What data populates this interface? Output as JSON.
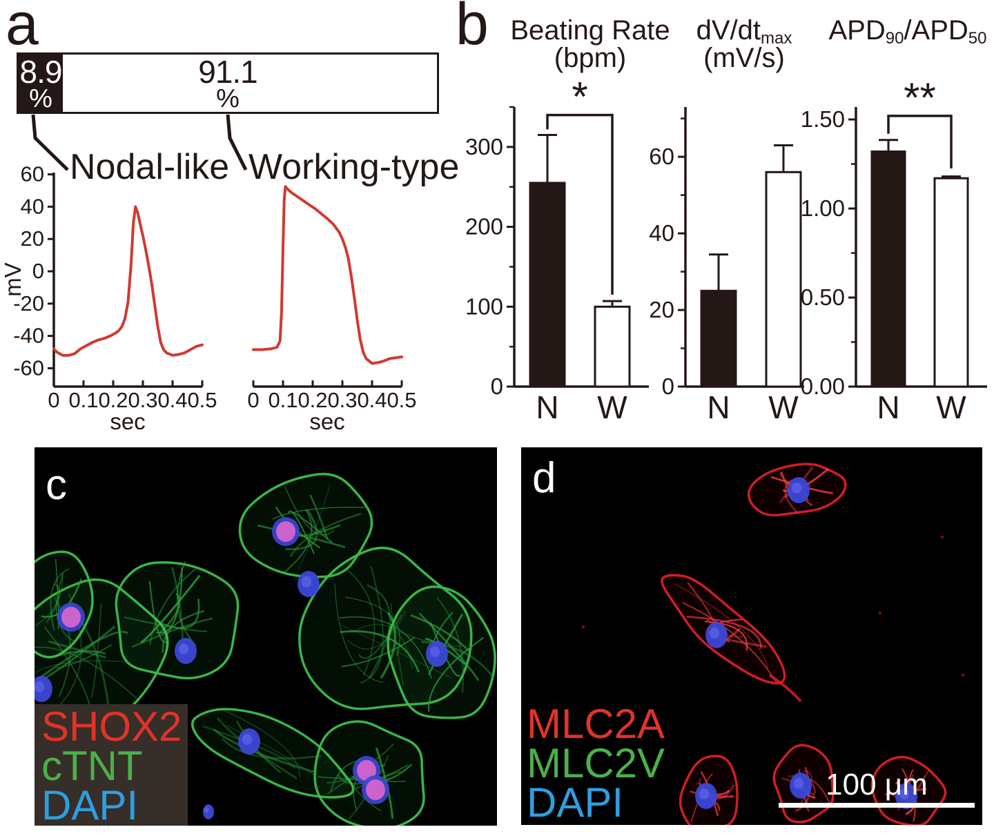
{
  "colors": {
    "ink": "#231815",
    "trace_red": "#cf3a31",
    "micro_green": "#3fbf4b",
    "micro_red": "#dd1f28",
    "nucleus_blue": "#3c47d6",
    "nucleus_pink": "#d565cc",
    "legend_red": "#e23328",
    "legend_green": "#4cb04a",
    "legend_blue": "#2d9fe0",
    "legend_bg": "#362e29",
    "white": "#ffffff"
  },
  "panels": {
    "a": {
      "label": "a",
      "distribution": {
        "segments": [
          {
            "name": "Nodal-like",
            "value": "8.9",
            "unit": "%"
          },
          {
            "name": "Working-type",
            "value": "91.1",
            "unit": "%"
          }
        ]
      }
    },
    "b": {
      "label": "b",
      "charts": [
        {
          "title_segments": [
            {
              "t": "Beating Rate"
            }
          ],
          "subtitle": "(bpm)"
        },
        {
          "title_segments": [
            {
              "t": "dV/dt"
            },
            {
              "t": "max",
              "sub": true
            }
          ],
          "subtitle": "(mV/s)"
        },
        {
          "title_segments": [
            {
              "t": "APD"
            },
            {
              "t": "90",
              "sub": true
            },
            {
              "t": "/APD"
            },
            {
              "t": "50",
              "sub": true
            }
          ],
          "subtitle": ""
        }
      ]
    },
    "c": {
      "label": "c",
      "legend": [
        {
          "text": "SHOX2",
          "color": "#e23328"
        },
        {
          "text": "cTNT",
          "color": "#4cb04a"
        },
        {
          "text": "DAPI",
          "color": "#2d9fe0"
        }
      ]
    },
    "d": {
      "label": "d",
      "legend": [
        {
          "text": "MLC2A",
          "color": "#e23328"
        },
        {
          "text": "MLC2V",
          "color": "#4cb04a"
        },
        {
          "text": "DAPI",
          "color": "#2d9fe0"
        }
      ],
      "scale_bar": {
        "text": "100 μm"
      }
    }
  },
  "chart_data": [
    {
      "id": "cell-type-distribution",
      "type": "bar",
      "orientation": "horizontal-stacked",
      "categories": [
        "Nodal-like",
        "Working-type"
      ],
      "values": [
        8.9,
        91.1
      ],
      "unit": "%",
      "fills": [
        "#231815",
        "#ffffff"
      ]
    },
    {
      "id": "nodal-ap-trace",
      "type": "line",
      "series_name": "Nodal-like action potential",
      "xlabel": "sec",
      "ylabel": "mV",
      "xlim": [
        0,
        0.5
      ],
      "ylim": [
        -60,
        60
      ],
      "xticks": [
        "0",
        "0.1",
        "0.2",
        "0.3",
        "0.4",
        "0.5"
      ],
      "yticks": [
        "60",
        "40",
        "20",
        "0",
        "-20",
        "-40",
        "-60"
      ],
      "color": "#cf3a31",
      "points": [
        [
          0,
          -48
        ],
        [
          0.01,
          -50
        ],
        [
          0.03,
          -52
        ],
        [
          0.05,
          -52
        ],
        [
          0.07,
          -51
        ],
        [
          0.09,
          -48
        ],
        [
          0.11,
          -46
        ],
        [
          0.13,
          -44
        ],
        [
          0.15,
          -42.5
        ],
        [
          0.17,
          -41.5
        ],
        [
          0.19,
          -40
        ],
        [
          0.21,
          -38
        ],
        [
          0.22,
          -36.5
        ],
        [
          0.23,
          -34
        ],
        [
          0.24,
          -29
        ],
        [
          0.25,
          -19
        ],
        [
          0.26,
          4
        ],
        [
          0.268,
          30
        ],
        [
          0.275,
          40
        ],
        [
          0.283,
          36
        ],
        [
          0.29,
          30
        ],
        [
          0.3,
          22
        ],
        [
          0.31,
          13
        ],
        [
          0.32,
          3
        ],
        [
          0.33,
          -8
        ],
        [
          0.34,
          -21
        ],
        [
          0.35,
          -34
        ],
        [
          0.36,
          -44
        ],
        [
          0.37,
          -48.5
        ],
        [
          0.38,
          -50.5
        ],
        [
          0.4,
          -52
        ],
        [
          0.42,
          -51.5
        ],
        [
          0.44,
          -50.5
        ],
        [
          0.46,
          -48.5
        ],
        [
          0.48,
          -46.5
        ],
        [
          0.5,
          -45.5
        ]
      ]
    },
    {
      "id": "working-ap-trace",
      "type": "line",
      "series_name": "Working-type action potential",
      "xlabel": "sec",
      "ylabel": "",
      "xlim": [
        0,
        0.5
      ],
      "ylim": [
        -60,
        60
      ],
      "xticks": [
        "0",
        "0.1",
        "0.2",
        "0.3",
        "0.4",
        "0.5"
      ],
      "yticks": [],
      "color": "#cf3a31",
      "points": [
        [
          0,
          -48.5
        ],
        [
          0.03,
          -48.5
        ],
        [
          0.06,
          -48
        ],
        [
          0.08,
          -47
        ],
        [
          0.09,
          -43
        ],
        [
          0.095,
          -25
        ],
        [
          0.1,
          15
        ],
        [
          0.104,
          44
        ],
        [
          0.108,
          52.5
        ],
        [
          0.115,
          51
        ],
        [
          0.13,
          48.5
        ],
        [
          0.15,
          46
        ],
        [
          0.17,
          43.5
        ],
        [
          0.19,
          41
        ],
        [
          0.21,
          38.5
        ],
        [
          0.23,
          35.5
        ],
        [
          0.25,
          32.5
        ],
        [
          0.27,
          29
        ],
        [
          0.29,
          24
        ],
        [
          0.3,
          20
        ],
        [
          0.31,
          15
        ],
        [
          0.32,
          8
        ],
        [
          0.33,
          -3
        ],
        [
          0.34,
          -16
        ],
        [
          0.35,
          -30
        ],
        [
          0.36,
          -42
        ],
        [
          0.37,
          -50
        ],
        [
          0.38,
          -54
        ],
        [
          0.4,
          -57
        ],
        [
          0.42,
          -56.5
        ],
        [
          0.44,
          -55.5
        ],
        [
          0.46,
          -54
        ],
        [
          0.48,
          -53.5
        ],
        [
          0.5,
          -53
        ]
      ]
    },
    {
      "id": "beating-rate",
      "type": "bar",
      "title": "Beating Rate",
      "unit": "(bpm)",
      "categories": [
        "N",
        "W"
      ],
      "values": [
        255,
        100
      ],
      "errors": [
        60,
        7
      ],
      "ylim": [
        0,
        350
      ],
      "yticks": [
        0,
        100,
        200,
        300
      ],
      "ytick_labels": [
        "0",
        "100",
        "200",
        "300"
      ],
      "minor_tick_step": 50,
      "bar_fills": [
        "#231815",
        "#ffffff"
      ],
      "significance": {
        "label": "*",
        "bracket_y": 340,
        "left_drop_to": 322,
        "right_drop_to": 115
      }
    },
    {
      "id": "dvdt-max",
      "type": "bar",
      "title": "dV/dt max",
      "unit": "(mV/s)",
      "categories": [
        "N",
        "W"
      ],
      "values": [
        25,
        56
      ],
      "errors": [
        9.5,
        7
      ],
      "ylim": [
        0,
        73
      ],
      "yticks": [
        0,
        20,
        40,
        60
      ],
      "ytick_labels": [
        "0",
        "20",
        "40",
        "60"
      ],
      "minor_tick_step": 10,
      "bar_fills": [
        "#231815",
        "#ffffff"
      ],
      "significance": null
    },
    {
      "id": "apd-ratio",
      "type": "bar",
      "title": "APD90/APD50",
      "unit": "",
      "categories": [
        "N",
        "W"
      ],
      "values": [
        1.32,
        1.17
      ],
      "errors": [
        0.065,
        0.01
      ],
      "ylim": [
        0,
        1.57
      ],
      "yticks": [
        0,
        0.5,
        1.0,
        1.5
      ],
      "ytick_labels": [
        "0.00",
        "0.50",
        "1.00",
        "1.50"
      ],
      "minor_tick_step": 0.25,
      "bar_fills": [
        "#231815",
        "#ffffff"
      ],
      "significance": {
        "label": "**",
        "bracket_y": 1.52,
        "left_drop_to": 1.42,
        "right_drop_to": 1.225
      }
    }
  ]
}
